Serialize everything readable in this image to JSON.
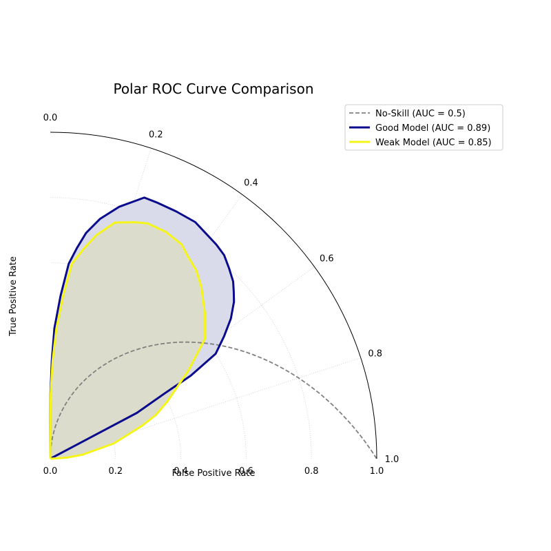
{
  "chart_data": {
    "type": "line",
    "projection": "polar quarter-circle; theta = (1 - TPR) * 90 degrees, radius = FPR",
    "title": "Polar ROC Curve Comparison",
    "xlabel": "False Positive Rate",
    "ylabel": "True Positive Rate",
    "radial_ticks": [
      "0.0",
      "0.2",
      "0.4",
      "0.6",
      "0.8",
      "1.0"
    ],
    "angular_ticks": [
      "1.0",
      "0.8",
      "0.6",
      "0.4",
      "0.2",
      "0.0"
    ],
    "radial_range": [
      0,
      1
    ],
    "grid": true,
    "legend": {
      "position": "top-right",
      "entries": [
        "No-Skill (AUC = 0.5)",
        "Good Model (AUC = 0.89)",
        "Weak Model (AUC = 0.85)"
      ]
    },
    "series": [
      {
        "name": "No-Skill (AUC = 0.5)",
        "color": "#808080",
        "style": "dashed",
        "fpr": [
          0.0,
          0.1,
          0.2,
          0.3,
          0.4,
          0.5,
          0.6,
          0.7,
          0.8,
          0.9,
          1.0
        ],
        "tpr": [
          0.0,
          0.1,
          0.2,
          0.3,
          0.4,
          0.5,
          0.6,
          0.7,
          0.8,
          0.9,
          1.0
        ]
      },
      {
        "name": "Good Model (AUC = 0.89)",
        "color": "#0a0a8c",
        "fill": "#d9dbea",
        "style": "solid",
        "fpr": [
          0.0,
          0.2,
          0.3,
          0.4,
          0.5,
          0.6,
          0.65,
          0.7,
          0.75,
          0.8,
          0.85,
          0.85,
          0.85,
          0.85,
          0.84,
          0.83,
          0.82,
          0.8,
          0.78,
          0.76,
          0.74,
          0.7,
          0.65,
          0.6,
          0.5,
          0.4,
          0.3,
          0.0
        ],
        "tpr": [
          0.0,
          0.002,
          0.01,
          0.02,
          0.04,
          0.06,
          0.08,
          0.1,
          0.13,
          0.17,
          0.22,
          0.25,
          0.3,
          0.35,
          0.38,
          0.42,
          0.45,
          0.48,
          0.51,
          0.53,
          0.55,
          0.58,
          0.61,
          0.64,
          0.66,
          0.67,
          0.69,
          1.0
        ]
      },
      {
        "name": "Weak Model (AUC = 0.85)",
        "color": "#f5f51a",
        "fill": "#dcdccc",
        "style": "solid",
        "fpr": [
          0.0,
          0.2,
          0.3,
          0.4,
          0.5,
          0.6,
          0.65,
          0.7,
          0.75,
          0.77,
          0.78,
          0.78,
          0.77,
          0.75,
          0.73,
          0.7,
          0.65,
          0.6,
          0.5,
          0.45,
          0.4,
          0.35,
          0.3,
          0.2,
          0.1,
          0.05,
          0.0
        ],
        "tpr": [
          0.0,
          0.004,
          0.015,
          0.03,
          0.05,
          0.07,
          0.1,
          0.13,
          0.17,
          0.22,
          0.25,
          0.3,
          0.35,
          0.38,
          0.42,
          0.46,
          0.52,
          0.58,
          0.64,
          0.67,
          0.71,
          0.75,
          0.78,
          0.85,
          0.92,
          0.96,
          1.0
        ]
      }
    ]
  }
}
